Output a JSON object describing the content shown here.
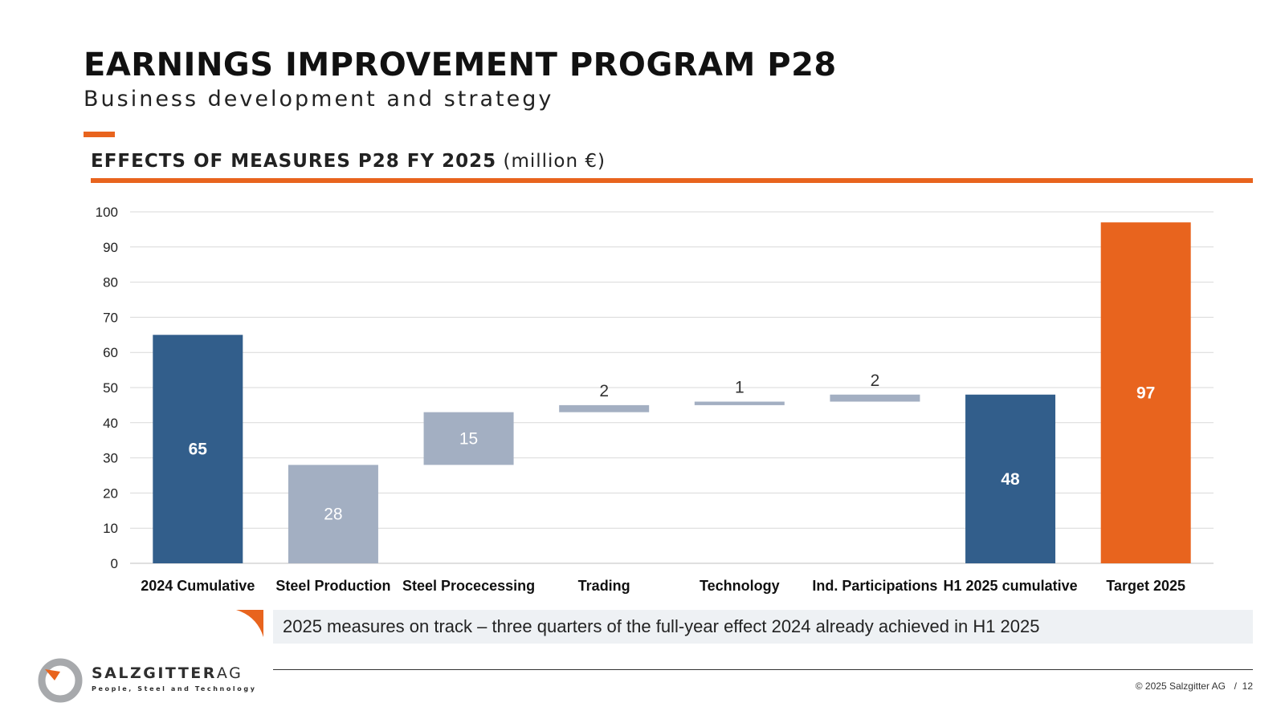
{
  "header": {
    "title": "EARNINGS IMPROVEMENT PROGRAM P28",
    "subtitle": "Business development and strategy"
  },
  "section": {
    "title_bold": "EFFECTS OF MEASURES P28 FY 2025",
    "title_unit": "(million €)"
  },
  "chart_data": {
    "type": "bar",
    "subtype": "waterfall",
    "title": "EFFECTS OF MEASURES P28 FY 2025 (million €)",
    "categories": [
      "2024 Cumulative",
      "Steel Production",
      "Steel Procecessing",
      "Trading",
      "Technology",
      "Ind. Participations",
      "H1 2025 cumulative",
      "Target 2025"
    ],
    "bars": [
      {
        "category": "2024 Cumulative",
        "base": 0,
        "value": 65,
        "label": "65",
        "kind": "total"
      },
      {
        "category": "Steel Production",
        "base": 0,
        "value": 28,
        "label": "28",
        "kind": "step"
      },
      {
        "category": "Steel Procecessing",
        "base": 28,
        "value": 15,
        "label": "15",
        "kind": "step"
      },
      {
        "category": "Trading",
        "base": 43,
        "value": 2,
        "label": "2",
        "kind": "step"
      },
      {
        "category": "Technology",
        "base": 45,
        "value": 1,
        "label": "1",
        "kind": "step"
      },
      {
        "category": "Ind. Participations",
        "base": 46,
        "value": 2,
        "label": "2",
        "kind": "step"
      },
      {
        "category": "H1 2025 cumulative",
        "base": 0,
        "value": 48,
        "label": "48",
        "kind": "total"
      },
      {
        "category": "Target 2025",
        "base": 0,
        "value": 97,
        "label": "97",
        "kind": "target"
      }
    ],
    "ylim": [
      0,
      100
    ],
    "yticks": [
      0,
      10,
      20,
      30,
      40,
      50,
      60,
      70,
      80,
      90,
      100
    ],
    "grid": true,
    "legend": "none",
    "colors": {
      "total": "#325e8b",
      "step": "#a3afc2",
      "target": "#e8641e",
      "grid": "#d9d9d9",
      "axis": "#bfbfbf"
    }
  },
  "note": {
    "text": "2025 measures on track – three quarters of the full-year effect 2024 already achieved in H1 2025"
  },
  "footer": {
    "copyright": "© 2025 Salzgitter AG",
    "separator": "/",
    "page": "12"
  },
  "logo": {
    "name": "SALZGITTER",
    "suffix": "AG",
    "tagline": "People, Steel and Technology",
    "icon": "salzgitter-logo-icon",
    "colors": {
      "ring": "#a7a9ac",
      "accent": "#e8641e",
      "text": "#2f2f2f"
    }
  },
  "accent_color": "#e8641e"
}
